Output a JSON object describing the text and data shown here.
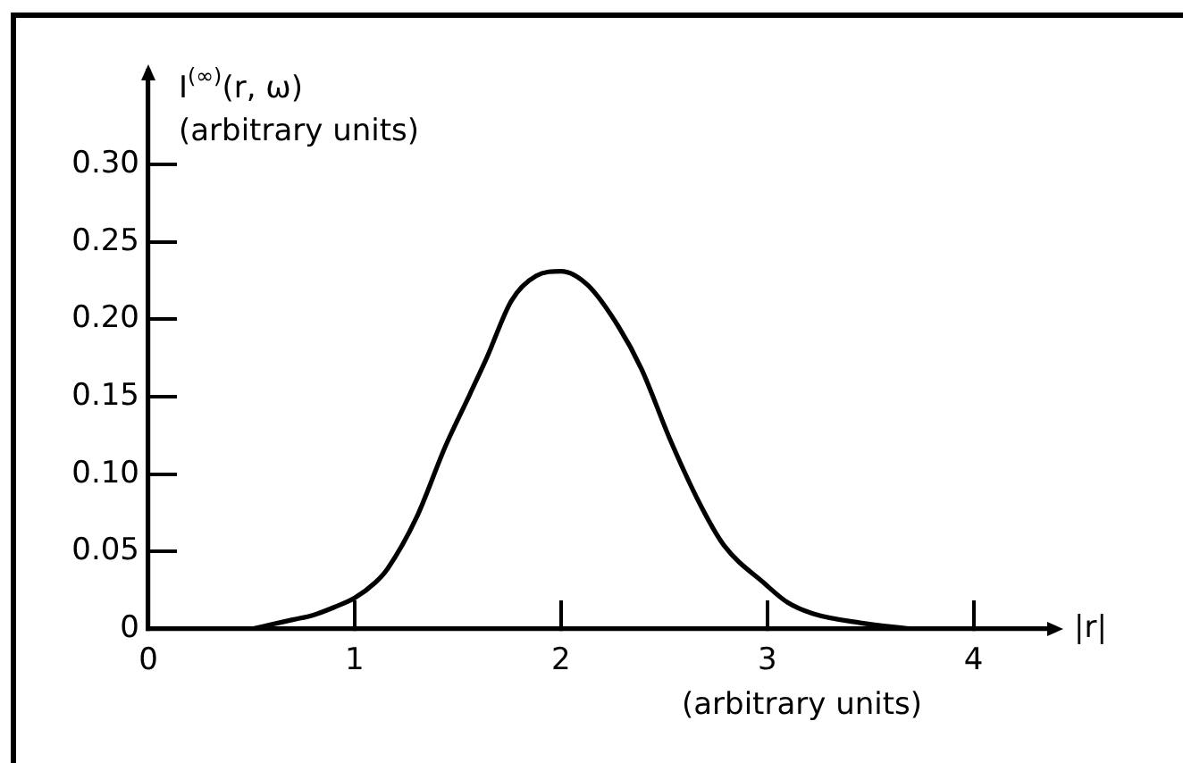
{
  "chart_data": {
    "type": "line",
    "xlabel": "|r|",
    "ylabel": "I$^{(∞)}$(r, ω)\n(arbitrary units)",
    "annotations": [
      "(arbitrary units)"
    ],
    "x": [
      0.5,
      0.6,
      0.7,
      0.8,
      0.9,
      1.0,
      1.1,
      1.16,
      1.3,
      1.44,
      1.56,
      1.64,
      1.76,
      1.88,
      2.0,
      2.13,
      2.28,
      2.39,
      2.53,
      2.68,
      2.79,
      2.99,
      3.1,
      3.22,
      3.45,
      3.7
    ],
    "series": [
      {
        "color": "#000000",
        "values": [
          0,
          0.003,
          0.006,
          0.009,
          0.014,
          0.02,
          0.03,
          0.039,
          0.072,
          0.118,
          0.152,
          0.175,
          0.212,
          0.228,
          0.231,
          0.222,
          0.195,
          0.168,
          0.122,
          0.079,
          0.054,
          0.029,
          0.017,
          0.01,
          0.004,
          0
        ]
      }
    ],
    "xlim": [
      0,
      4.4
    ],
    "ylim": [
      0,
      0.36
    ],
    "xticks": [
      0,
      1,
      2,
      3,
      4
    ],
    "yticks": [
      0,
      0.05,
      {
        "value": 0.1,
        "label": "0.10"
      },
      0.15,
      {
        "value": 0.2,
        "label": "0.20"
      },
      0.25,
      {
        "value": 0.3,
        "label": "0.30"
      }
    ],
    "grid": false,
    "legend": false,
    "marker": "none",
    "line_style": "solid"
  }
}
